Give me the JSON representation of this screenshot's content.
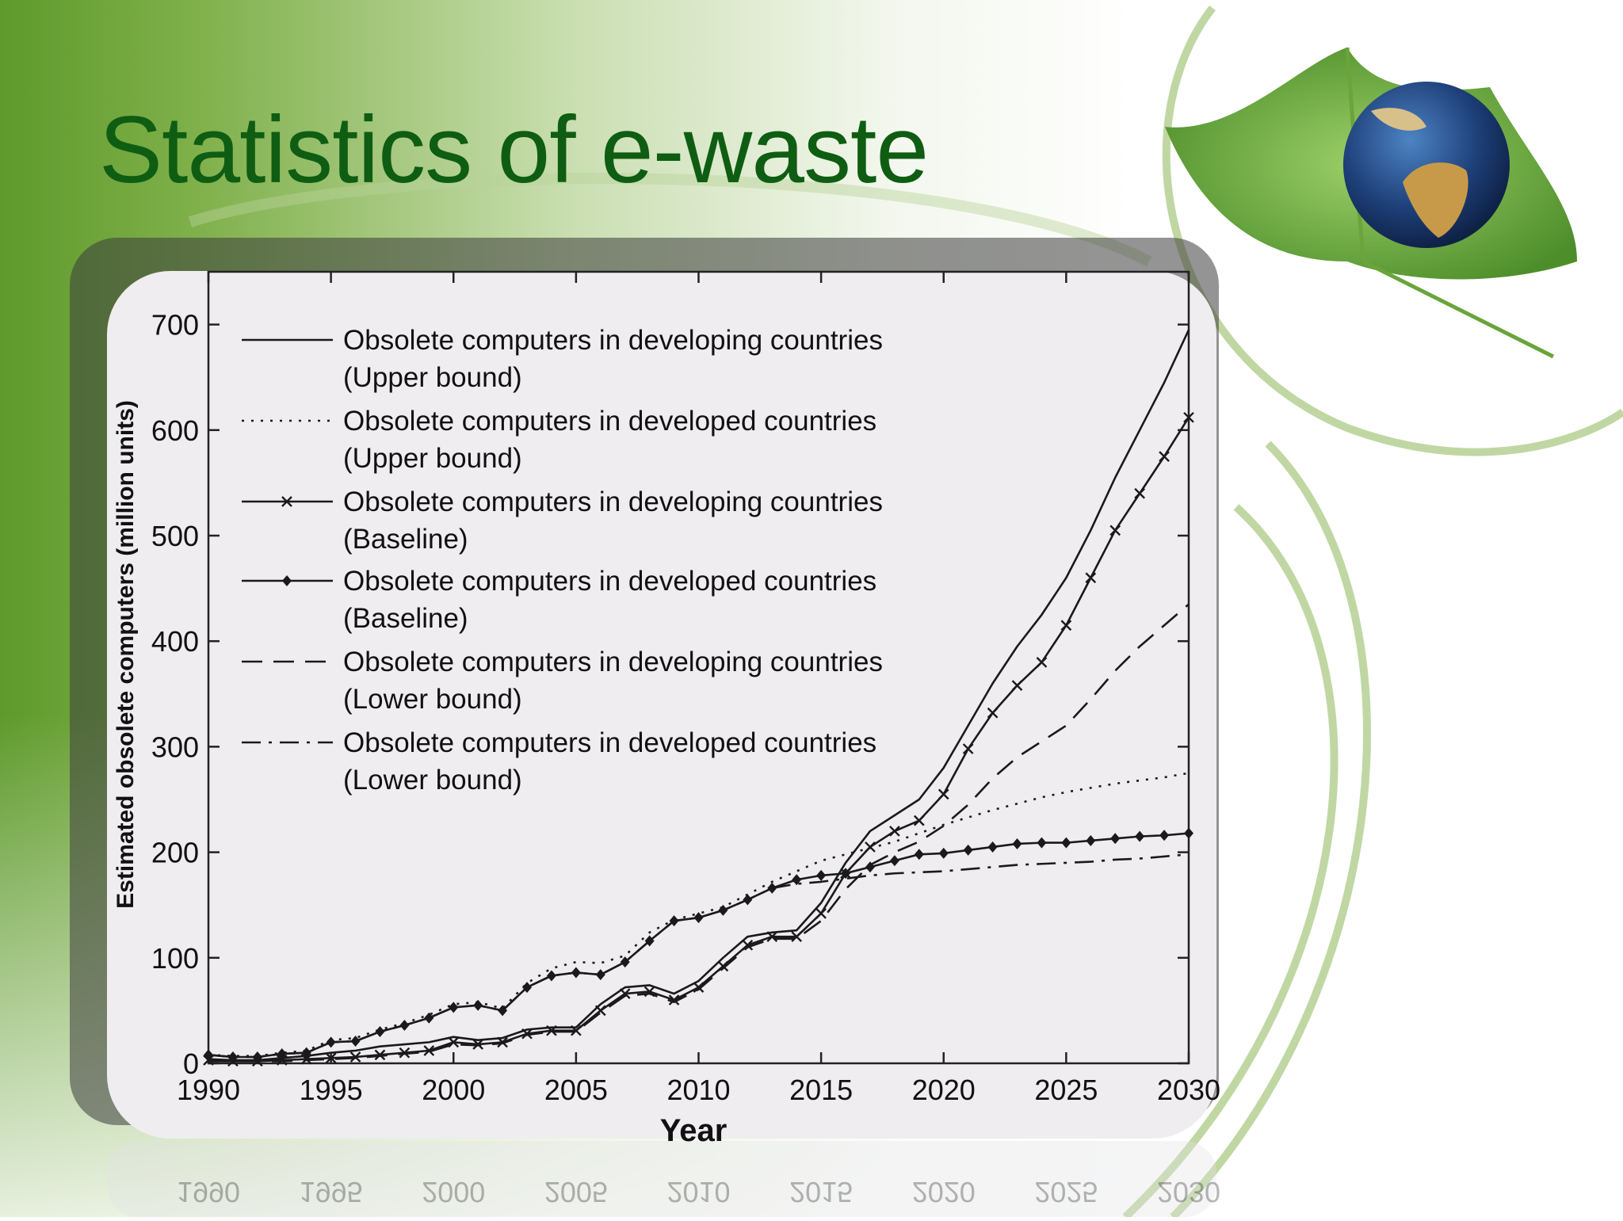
{
  "slide": {
    "title": "Statistics of e-waste",
    "colors": {
      "title": "#0e5d12",
      "accent_green": "#5a9a2e",
      "chart_panel": "#efedf0",
      "line": "#1a1a1a"
    },
    "decorations": [
      "leaf-globe-image",
      "curved-green-arcs",
      "green-gradient-background"
    ]
  },
  "chart_data": {
    "type": "line",
    "title": "",
    "xlabel": "Year",
    "ylabel": "Estimated obsolete computers (million units)",
    "xlim": [
      1990,
      2030
    ],
    "ylim": [
      0,
      750
    ],
    "xticks": [
      1990,
      1995,
      2000,
      2005,
      2010,
      2015,
      2020,
      2025,
      2030
    ],
    "yticks": [
      0,
      100,
      200,
      300,
      400,
      500,
      600,
      700
    ],
    "grid": false,
    "legend_position": "top-left",
    "x": [
      1990,
      1991,
      1992,
      1993,
      1994,
      1995,
      1996,
      1997,
      1998,
      1999,
      2000,
      2001,
      2002,
      2003,
      2004,
      2005,
      2006,
      2007,
      2008,
      2009,
      2010,
      2011,
      2012,
      2013,
      2014,
      2015,
      2016,
      2017,
      2018,
      2019,
      2020,
      2021,
      2022,
      2023,
      2024,
      2025,
      2026,
      2027,
      2028,
      2029,
      2030
    ],
    "series": [
      {
        "name": "Obsolete computers in developing countries",
        "name_suffix": "(Upper bound)",
        "style": "solid",
        "values": [
          4,
          3,
          3,
          5,
          7,
          10,
          12,
          16,
          18,
          20,
          25,
          22,
          24,
          32,
          34,
          34,
          56,
          72,
          74,
          66,
          78,
          100,
          120,
          124,
          126,
          152,
          190,
          220,
          235,
          250,
          280,
          320,
          360,
          395,
          425,
          460,
          505,
          555,
          600,
          645,
          695
        ]
      },
      {
        "name": "Obsolete computers in developed countries",
        "name_suffix": "(Upper bound)",
        "style": "dotted",
        "values": [
          8,
          7,
          7,
          10,
          12,
          22,
          24,
          32,
          38,
          46,
          56,
          58,
          52,
          76,
          90,
          96,
          95,
          102,
          124,
          136,
          142,
          148,
          160,
          172,
          182,
          192,
          198,
          204,
          210,
          218,
          226,
          233,
          240,
          246,
          252,
          257,
          261,
          265,
          268,
          271,
          275
        ]
      },
      {
        "name": "Obsolete computers in developing countries",
        "name_suffix": "(Baseline)",
        "style": "solid-x",
        "values": [
          3,
          2,
          2,
          3,
          4,
          5,
          6,
          8,
          10,
          12,
          20,
          18,
          20,
          28,
          31,
          31,
          50,
          66,
          68,
          60,
          72,
          92,
          112,
          120,
          120,
          142,
          180,
          205,
          220,
          230,
          255,
          298,
          332,
          358,
          380,
          415,
          460,
          505,
          540,
          575,
          612
        ]
      },
      {
        "name": "Obsolete computers in developed countries",
        "name_suffix": "(Baseline)",
        "style": "solid-dot",
        "values": [
          8,
          6,
          6,
          9,
          10,
          20,
          21,
          30,
          36,
          43,
          53,
          55,
          50,
          72,
          83,
          86,
          84,
          96,
          116,
          135,
          138,
          145,
          155,
          166,
          174,
          178,
          180,
          186,
          192,
          198,
          199,
          202,
          205,
          208,
          209,
          209,
          211,
          213,
          215,
          216,
          218
        ]
      },
      {
        "name": "Obsolete computers in developing countries",
        "name_suffix": "(Lower bound)",
        "style": "dashed",
        "values": [
          2,
          2,
          2,
          2,
          3,
          4,
          5,
          7,
          9,
          11,
          18,
          17,
          19,
          27,
          30,
          30,
          48,
          64,
          66,
          58,
          70,
          90,
          110,
          118,
          118,
          135,
          165,
          188,
          200,
          210,
          225,
          245,
          270,
          290,
          305,
          320,
          345,
          372,
          395,
          415,
          435
        ]
      },
      {
        "name": "Obsolete computers in developed countries",
        "name_suffix": "(Lower bound)",
        "style": "dashdot",
        "values": [
          8,
          6,
          6,
          9,
          10,
          20,
          21,
          30,
          36,
          43,
          53,
          55,
          50,
          72,
          83,
          86,
          84,
          96,
          116,
          135,
          138,
          145,
          155,
          166,
          170,
          172,
          175,
          178,
          180,
          181,
          182,
          184,
          186,
          188,
          189,
          190,
          191,
          193,
          194,
          196,
          198
        ]
      }
    ]
  }
}
